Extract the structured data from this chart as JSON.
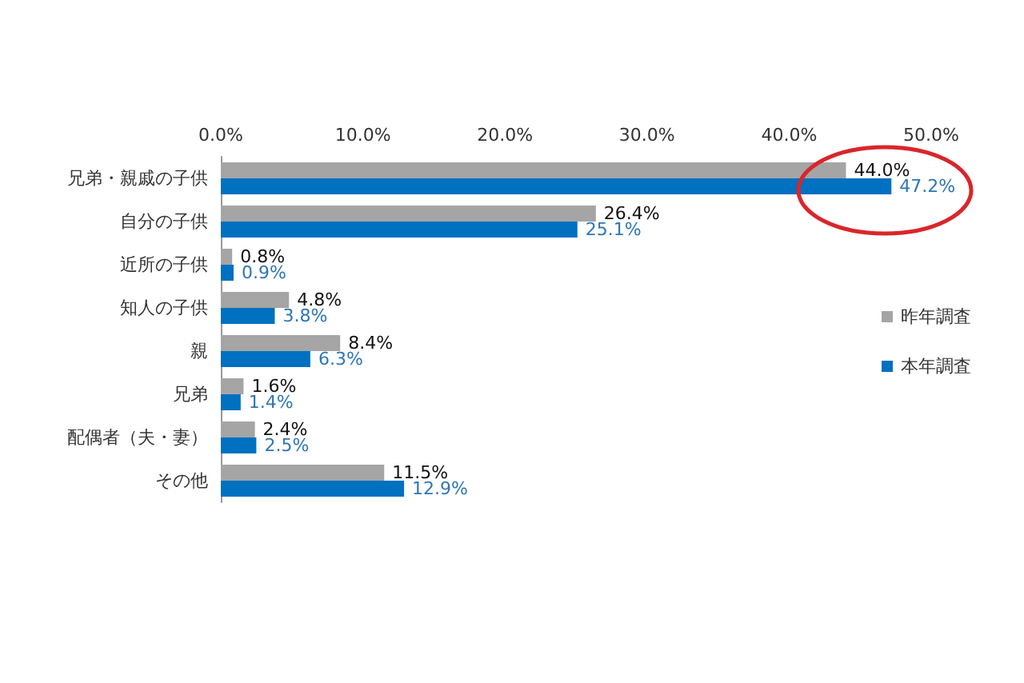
{
  "chart_data": {
    "type": "bar",
    "orientation": "horizontal",
    "categories": [
      "兄弟・親戚の子供",
      "自分の子供",
      "近所の子供",
      "知人の子供",
      "親",
      "兄弟",
      "配偶者（夫・妻）",
      "その他"
    ],
    "series": [
      {
        "name": "昨年調査",
        "color": "#a5a5a5",
        "values": [
          44.0,
          26.4,
          0.8,
          4.8,
          8.4,
          1.6,
          2.4,
          11.5
        ],
        "value_labels": [
          "44.0%",
          "26.4%",
          "0.8%",
          "4.8%",
          "8.4%",
          "1.6%",
          "2.4%",
          "11.5%"
        ]
      },
      {
        "name": "本年調査",
        "color": "#0070c0",
        "values": [
          47.2,
          25.1,
          0.9,
          3.8,
          6.3,
          1.4,
          2.5,
          12.9
        ],
        "value_labels": [
          "47.2%",
          "25.1%",
          "0.9%",
          "3.8%",
          "6.3%",
          "1.4%",
          "2.5%",
          "12.9%"
        ]
      }
    ],
    "xlim": [
      0,
      50
    ],
    "xticks": [
      {
        "value": 0,
        "label": "0.0%"
      },
      {
        "value": 10,
        "label": "10.0%"
      },
      {
        "value": 20,
        "label": "20.0%"
      },
      {
        "value": 30,
        "label": "30.0%"
      },
      {
        "value": 40,
        "label": "40.0%"
      },
      {
        "value": 50,
        "label": "50.0%"
      }
    ],
    "grid": false,
    "legend": "right"
  }
}
